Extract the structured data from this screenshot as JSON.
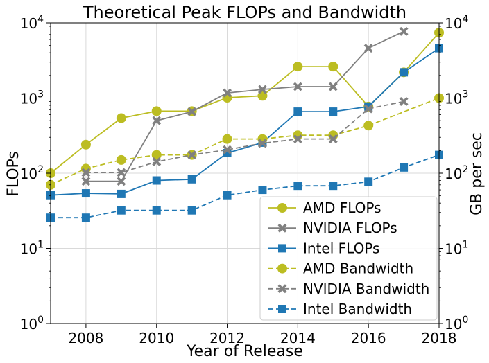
{
  "chart_data": {
    "type": "line",
    "title": "Theoretical Peak FLOPs and Bandwidth",
    "xlabel": "Year of Release",
    "ylabel": "FLOPs",
    "ylabel_right": "GB per sec",
    "xlim": [
      2007,
      2018
    ],
    "ylim": [
      1,
      10000
    ],
    "y_scale": "log",
    "grid": true,
    "legend_position": "lower-right",
    "x_ticks": [
      2008,
      2010,
      2012,
      2014,
      2016,
      2018
    ],
    "x_tick_labels": [
      "2008",
      "2010",
      "2012",
      "2014",
      "2016",
      "2018"
    ],
    "y_ticks": [
      {
        "value": 1,
        "base": "10",
        "exp": "0"
      },
      {
        "value": 10,
        "base": "10",
        "exp": "1"
      },
      {
        "value": 100,
        "base": "10",
        "exp": "2"
      },
      {
        "value": 1000,
        "base": "10",
        "exp": "3"
      },
      {
        "value": 10000,
        "base": "10",
        "exp": "4"
      }
    ],
    "series": [
      {
        "name": "AMD FLOPs",
        "color": "#bcbd22",
        "marker": "circle",
        "dash": "solid",
        "x": [
          2007,
          2008,
          2009,
          2010,
          2011,
          2012,
          2013,
          2014,
          2015,
          2016,
          2017,
          2018
        ],
        "y": [
          100,
          240,
          540,
          670,
          670,
          1010,
          1070,
          2620,
          2620,
          770,
          2200,
          7400
        ]
      },
      {
        "name": "NVIDIA FLOPs",
        "color": "#808080",
        "marker": "x",
        "dash": "solid",
        "x": [
          2008,
          2009,
          2010,
          2011,
          2012,
          2013,
          2014,
          2015,
          2016,
          2017
        ],
        "y": [
          78,
          78,
          500,
          660,
          1170,
          1300,
          1420,
          1420,
          4600,
          7700
        ]
      },
      {
        "name": "Intel FLOPs",
        "color": "#1f77b4",
        "marker": "square",
        "dash": "solid",
        "x": [
          2007,
          2008,
          2009,
          2010,
          2011,
          2012,
          2013,
          2014,
          2015,
          2016,
          2017,
          2018
        ],
        "y": [
          51,
          54,
          53,
          80,
          83,
          185,
          255,
          660,
          660,
          770,
          2200,
          4600
        ]
      },
      {
        "name": "AMD Bandwidth",
        "color": "#bcbd22",
        "marker": "circle",
        "dash": "dashed",
        "x": [
          2007,
          2008,
          2009,
          2010,
          2011,
          2012,
          2013,
          2014,
          2015,
          2016,
          2018
        ],
        "y": [
          70,
          115,
          150,
          175,
          175,
          285,
          285,
          320,
          320,
          430,
          1000
        ]
      },
      {
        "name": "NVIDIA Bandwidth",
        "color": "#808080",
        "marker": "x",
        "dash": "dashed",
        "x": [
          2008,
          2009,
          2010,
          2011,
          2012,
          2013,
          2014,
          2015,
          2016,
          2017
        ],
        "y": [
          102,
          102,
          142,
          175,
          205,
          250,
          285,
          285,
          720,
          900
        ]
      },
      {
        "name": "Intel Bandwidth",
        "color": "#1f77b4",
        "marker": "square",
        "dash": "dashed",
        "x": [
          2007,
          2008,
          2009,
          2010,
          2011,
          2012,
          2013,
          2014,
          2015,
          2016,
          2017,
          2018
        ],
        "y": [
          25.6,
          25.6,
          32,
          32,
          32,
          51,
          60,
          68,
          68,
          77,
          119,
          175
        ]
      }
    ]
  }
}
